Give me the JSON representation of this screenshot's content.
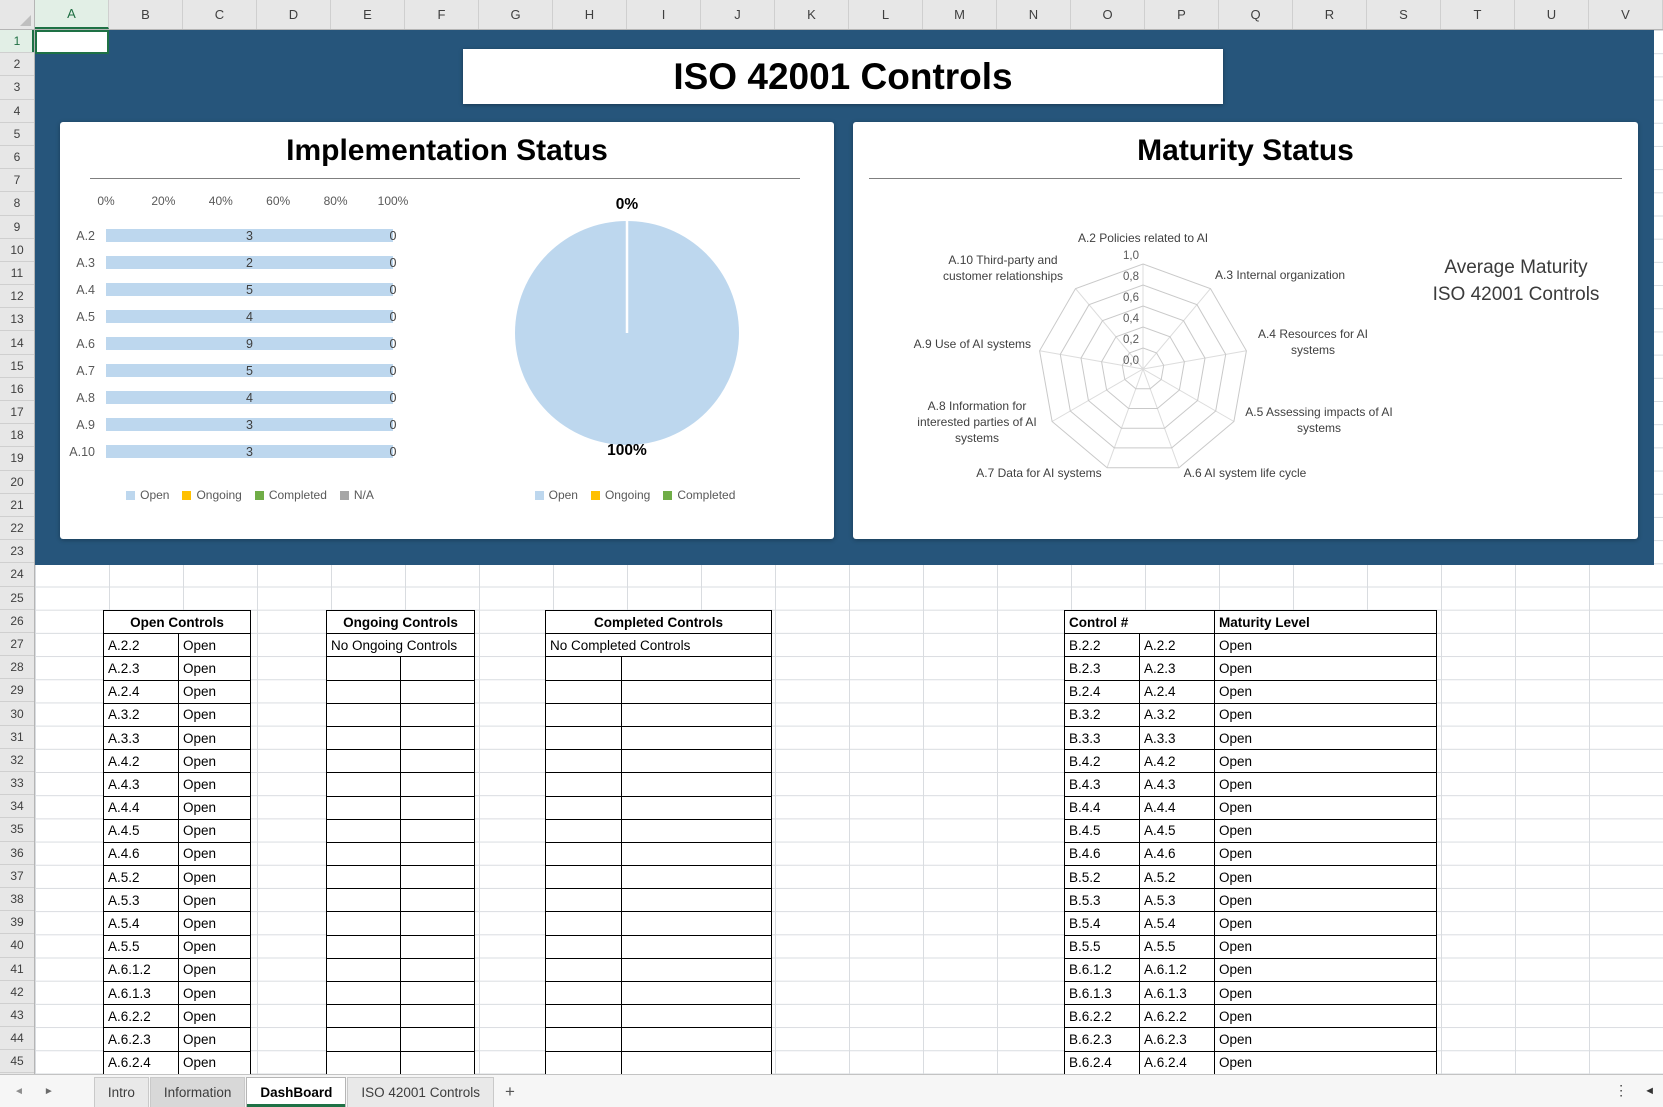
{
  "excel": {
    "column_headers": [
      "A",
      "B",
      "C",
      "D",
      "E",
      "F",
      "G",
      "H",
      "I",
      "J",
      "K",
      "L",
      "M",
      "N",
      "O",
      "P",
      "Q",
      "R",
      "S",
      "T",
      "U",
      "V"
    ],
    "row_count": 45,
    "first_row": 1,
    "selected_cell": "A1",
    "sheet_tabs": [
      {
        "label": "Intro",
        "active": false
      },
      {
        "label": "Information",
        "active": false
      },
      {
        "label": "DashBoard",
        "active": true
      },
      {
        "label": "ISO 42001 Controls",
        "active": false
      }
    ],
    "icons": {
      "nav_left": "◄",
      "nav_right": "►",
      "add_sheet": "+",
      "menu": "⋮",
      "scroll_left": "◄"
    }
  },
  "colors": {
    "banner_blue": "#26557B",
    "accent_green": "#1E7145",
    "open_blue": "#BDD7EE",
    "ongoing_yellow": "#FFC000",
    "completed_green": "#70AD47",
    "na_gray": "#A6A6A6"
  },
  "banner": {
    "title": "ISO 42001 Controls"
  },
  "implementation": {
    "title": "Implementation Status",
    "legend_bar": [
      {
        "label": "Open",
        "color": "#BDD7EE"
      },
      {
        "label": "Ongoing",
        "color": "#FFC000"
      },
      {
        "label": "Completed",
        "color": "#70AD47"
      },
      {
        "label": "N/A",
        "color": "#A6A6A6"
      }
    ],
    "legend_pie": [
      {
        "label": "Open",
        "color": "#BDD7EE"
      },
      {
        "label": "Ongoing",
        "color": "#FFC000"
      },
      {
        "label": "Completed",
        "color": "#70AD47"
      }
    ],
    "pie_top_label": "0%",
    "pie_bottom_label": "100%"
  },
  "maturity": {
    "title": "Maturity Status",
    "side_text_line1": "Average Maturity",
    "side_text_line2": "ISO 42001 Controls"
  },
  "chart_data": [
    {
      "type": "bar",
      "title": "Implementation Status",
      "orientation": "horizontal",
      "categories": [
        "A.2",
        "A.3",
        "A.4",
        "A.5",
        "A.6",
        "A.7",
        "A.8",
        "A.9",
        "A.10"
      ],
      "series": [
        {
          "name": "Open",
          "counts": [
            3,
            2,
            5,
            4,
            9,
            5,
            4,
            3,
            3
          ],
          "percent": [
            100,
            100,
            100,
            100,
            100,
            100,
            100,
            100,
            100
          ]
        },
        {
          "name": "Ongoing",
          "counts": [
            0,
            0,
            0,
            0,
            0,
            0,
            0,
            0,
            0
          ],
          "percent": [
            0,
            0,
            0,
            0,
            0,
            0,
            0,
            0,
            0
          ]
        },
        {
          "name": "Completed",
          "counts": [
            0,
            0,
            0,
            0,
            0,
            0,
            0,
            0,
            0
          ],
          "percent": [
            0,
            0,
            0,
            0,
            0,
            0,
            0,
            0,
            0
          ]
        },
        {
          "name": "N/A",
          "counts": [
            0,
            0,
            0,
            0,
            0,
            0,
            0,
            0,
            0
          ],
          "percent": [
            0,
            0,
            0,
            0,
            0,
            0,
            0,
            0,
            0
          ]
        }
      ],
      "bar_end_label": "0",
      "x_ticks": [
        "0%",
        "20%",
        "40%",
        "60%",
        "80%",
        "100%"
      ],
      "xlim": [
        0,
        100
      ]
    },
    {
      "type": "pie",
      "labels": [
        "Open",
        "Ongoing",
        "Completed"
      ],
      "values": [
        100,
        0,
        0
      ],
      "shown_labels": {
        "top": "0%",
        "bottom": "100%"
      }
    },
    {
      "type": "radar",
      "categories": [
        "A.2 Policies related to AI",
        "A.3 Internal organization",
        "A.4 Resources for AI systems",
        "A.5 Assessing impacts of AI systems",
        "A.6 AI system life cycle",
        "A.7 Data for AI systems",
        "A.8 Information for interested parties of AI systems",
        "A.9 Use of AI systems",
        "A.10 Third-party and customer relationships"
      ],
      "values": [
        0,
        0,
        0,
        0,
        0,
        0,
        0,
        0,
        0
      ],
      "r_ticks": [
        "0,0",
        "0,2",
        "0,4",
        "0,6",
        "0,8",
        "1,0"
      ],
      "rlim": [
        0,
        1
      ]
    }
  ],
  "tables": {
    "open": {
      "title": "Open Controls",
      "rows": [
        [
          "A.2.2",
          "Open"
        ],
        [
          "A.2.3",
          "Open"
        ],
        [
          "A.2.4",
          "Open"
        ],
        [
          "A.3.2",
          "Open"
        ],
        [
          "A.3.3",
          "Open"
        ],
        [
          "A.4.2",
          "Open"
        ],
        [
          "A.4.3",
          "Open"
        ],
        [
          "A.4.4",
          "Open"
        ],
        [
          "A.4.5",
          "Open"
        ],
        [
          "A.4.6",
          "Open"
        ],
        [
          "A.5.2",
          "Open"
        ],
        [
          "A.5.3",
          "Open"
        ],
        [
          "A.5.4",
          "Open"
        ],
        [
          "A.5.5",
          "Open"
        ],
        [
          "A.6.1.2",
          "Open"
        ],
        [
          "A.6.1.3",
          "Open"
        ],
        [
          "A.6.2.2",
          "Open"
        ],
        [
          "A.6.2.3",
          "Open"
        ],
        [
          "A.6.2.4",
          "Open"
        ]
      ]
    },
    "ongoing": {
      "title": "Ongoing Controls",
      "empty_text": "No Ongoing Controls",
      "blank_rows": 18
    },
    "completed": {
      "title": "Completed Controls",
      "empty_text": "No Completed Controls",
      "blank_rows": 18
    },
    "maturity": {
      "header_control": "Control #",
      "header_level": "Maturity Level",
      "rows": [
        [
          "B.2.2",
          "A.2.2",
          "Open"
        ],
        [
          "B.2.3",
          "A.2.3",
          "Open"
        ],
        [
          "B.2.4",
          "A.2.4",
          "Open"
        ],
        [
          "B.3.2",
          "A.3.2",
          "Open"
        ],
        [
          "B.3.3",
          "A.3.3",
          "Open"
        ],
        [
          "B.4.2",
          "A.4.2",
          "Open"
        ],
        [
          "B.4.3",
          "A.4.3",
          "Open"
        ],
        [
          "B.4.4",
          "A.4.4",
          "Open"
        ],
        [
          "B.4.5",
          "A.4.5",
          "Open"
        ],
        [
          "B.4.6",
          "A.4.6",
          "Open"
        ],
        [
          "B.5.2",
          "A.5.2",
          "Open"
        ],
        [
          "B.5.3",
          "A.5.3",
          "Open"
        ],
        [
          "B.5.4",
          "A.5.4",
          "Open"
        ],
        [
          "B.5.5",
          "A.5.5",
          "Open"
        ],
        [
          "B.6.1.2",
          "A.6.1.2",
          "Open"
        ],
        [
          "B.6.1.3",
          "A.6.1.3",
          "Open"
        ],
        [
          "B.6.2.2",
          "A.6.2.2",
          "Open"
        ],
        [
          "B.6.2.3",
          "A.6.2.3",
          "Open"
        ],
        [
          "B.6.2.4",
          "A.6.2.4",
          "Open"
        ]
      ]
    }
  }
}
